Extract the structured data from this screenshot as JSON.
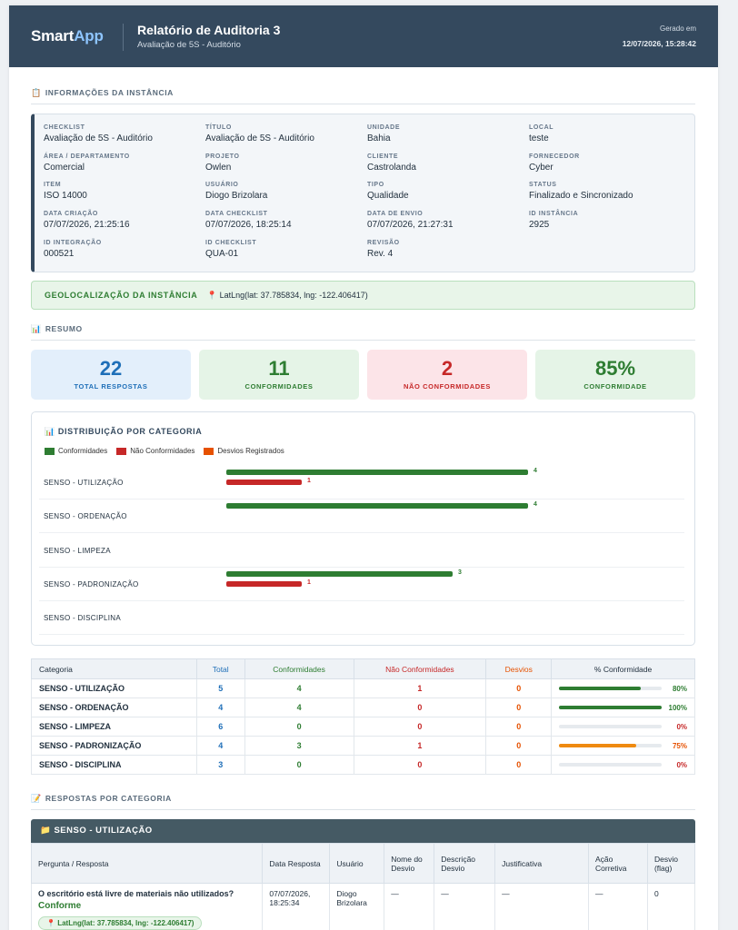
{
  "header": {
    "logo_part1": "Smart",
    "logo_part2": "App",
    "title": "Relatório de Auditoria 3",
    "subtitle": "Avaliação de 5S - Auditório",
    "generated_label": "Gerado em",
    "generated_date": "12/07/2026, 15:28:42"
  },
  "instance_info": {
    "section_title": "INFORMAÇÕES DA INSTÂNCIA",
    "fields": [
      {
        "label": "CHECKLIST",
        "value": "Avaliação de 5S - Auditório"
      },
      {
        "label": "TÍTULO",
        "value": "Avaliação de 5S - Auditório"
      },
      {
        "label": "UNIDADE",
        "value": "Bahia"
      },
      {
        "label": "LOCAL",
        "value": "teste"
      },
      {
        "label": "ÁREA / DEPARTAMENTO",
        "value": "Comercial"
      },
      {
        "label": "PROJETO",
        "value": "Owlen"
      },
      {
        "label": "CLIENTE",
        "value": "Castrolanda"
      },
      {
        "label": "FORNECEDOR",
        "value": "Cyber"
      },
      {
        "label": "ITEM",
        "value": "ISO 14000"
      },
      {
        "label": "USUÁRIO",
        "value": "Diogo Brizolara"
      },
      {
        "label": "TIPO",
        "value": "Qualidade"
      },
      {
        "label": "STATUS",
        "value": "Finalizado e Sincronizado"
      },
      {
        "label": "DATA CRIAÇÃO",
        "value": "07/07/2026, 21:25:16"
      },
      {
        "label": "DATA CHECKLIST",
        "value": "07/07/2026, 18:25:14"
      },
      {
        "label": "DATA DE ENVIO",
        "value": "07/07/2026, 21:27:31"
      },
      {
        "label": "ID INSTÂNCIA",
        "value": "2925"
      },
      {
        "label": "ID INTEGRAÇÃO",
        "value": "000521"
      },
      {
        "label": "ID CHECKLIST",
        "value": "QUA-01"
      },
      {
        "label": "REVISÃO",
        "value": "Rev. 4"
      }
    ]
  },
  "geolocation": {
    "label": "GEOLOCALIZAÇÃO DA INSTÂNCIA",
    "value": "LatLng(lat: 37.785834, lng: -122.406417)"
  },
  "summary": {
    "section_title": "RESUMO",
    "kpis": [
      {
        "value": "22",
        "label": "TOTAL RESPOSTAS",
        "bg": "#e3effb",
        "color": "#1f6fb8"
      },
      {
        "value": "11",
        "label": "CONFORMIDADES",
        "bg": "#e5f4e7",
        "color": "#2e7d32"
      },
      {
        "value": "2",
        "label": "NÃO CONFORMIDADES",
        "bg": "#fce4e8",
        "color": "#c62828"
      },
      {
        "value": "85%",
        "label": "CONFORMIDADE",
        "bg": "#e5f4e7",
        "color": "#2e7d32"
      }
    ]
  },
  "chart_data": {
    "type": "bar",
    "title": "DISTRIBUIÇÃO POR CATEGORIA",
    "categories": [
      "SENSO - UTILIZAÇÃO",
      "SENSO - ORDENAÇÃO",
      "SENSO - LIMPEZA",
      "SENSO - PADRONIZAÇÃO",
      "SENSO - DISCIPLINA"
    ],
    "series": [
      {
        "name": "Conformidades",
        "color": "#2e7d32",
        "values": [
          4,
          4,
          0,
          3,
          0
        ]
      },
      {
        "name": "Não Conformidades",
        "color": "#c62828",
        "values": [
          1,
          0,
          0,
          1,
          0
        ]
      },
      {
        "name": "Desvios Registrados",
        "color": "#e65100",
        "values": [
          0,
          0,
          0,
          0,
          0
        ]
      }
    ],
    "xlim": [
      0,
      4
    ],
    "orientation": "horizontal",
    "legend": "top-left"
  },
  "summary_table": {
    "headers": [
      "Categoria",
      "Total",
      "Conformidades",
      "Não Conformidades",
      "Desvios",
      "% Conformidade"
    ],
    "header_colors": [
      "#22313f",
      "#1f6fb8",
      "#2e7d32",
      "#c62828",
      "#e65100",
      "#22313f"
    ],
    "rows": [
      {
        "categoria": "SENSO - UTILIZAÇÃO",
        "total": "5",
        "conf": "4",
        "nao_conf": "1",
        "desvios": "0",
        "pct": 80,
        "pct_label": "80%",
        "bar_color": "#2e7d32",
        "pct_color": "#2e7d32"
      },
      {
        "categoria": "SENSO - ORDENAÇÃO",
        "total": "4",
        "conf": "4",
        "nao_conf": "0",
        "desvios": "0",
        "pct": 100,
        "pct_label": "100%",
        "bar_color": "#2e7d32",
        "pct_color": "#2e7d32"
      },
      {
        "categoria": "SENSO - LIMPEZA",
        "total": "6",
        "conf": "0",
        "nao_conf": "0",
        "desvios": "0",
        "pct": 0,
        "pct_label": "0%",
        "bar_color": "#c62828",
        "pct_color": "#c62828"
      },
      {
        "categoria": "SENSO - PADRONIZAÇÃO",
        "total": "4",
        "conf": "3",
        "nao_conf": "1",
        "desvios": "0",
        "pct": 75,
        "pct_label": "75%",
        "bar_color": "#ef8a10",
        "pct_color": "#e65100"
      },
      {
        "categoria": "SENSO - DISCIPLINA",
        "total": "3",
        "conf": "0",
        "nao_conf": "0",
        "desvios": "0",
        "pct": 0,
        "pct_label": "0%",
        "bar_color": "#c62828",
        "pct_color": "#c62828"
      }
    ]
  },
  "responses": {
    "section_title": "RESPOSTAS POR CATEGORIA",
    "category_title": "SENSO - UTILIZAÇÃO",
    "headers": [
      "Pergunta / Resposta",
      "Data Resposta",
      "Usuário",
      "Nome do Desvio",
      "Descrição Desvio",
      "Justificativa",
      "Ação Corretiva",
      "Desvio (flag)"
    ],
    "rows": [
      {
        "question": "O escritório está livre de materiais não utilizados?",
        "answer": "Conforme",
        "geo": "LatLng(lat: 37.785834, lng: -122.406417)",
        "date": "07/07/2026, 18:25:34",
        "user": "Diogo Brizolara",
        "desvio_nome": "—",
        "desvio_desc": "—",
        "justificativa": "—",
        "acao": "—",
        "flag": "0"
      }
    ]
  }
}
